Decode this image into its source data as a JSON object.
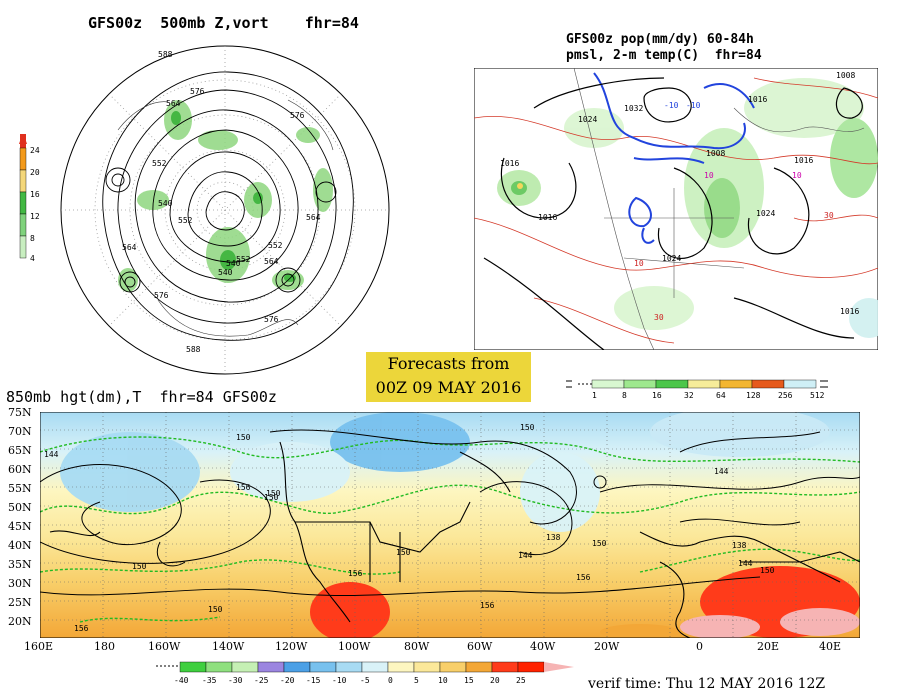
{
  "panels": {
    "polar": {
      "title": "GFS00z  500mb Z,vort    fhr=84",
      "colorbar_labels": [
        "24",
        "20",
        "16",
        "12",
        "8",
        "4"
      ],
      "colorbar_colors": [
        "#e0301e",
        "#f39a1b",
        "#f4d77a",
        "#42b843",
        "#7fd27c",
        "#c8eec0"
      ],
      "contour_labels": [
        "588",
        "576",
        "564",
        "552",
        "540",
        "552",
        "564",
        "576",
        "540",
        "552",
        "564",
        "576",
        "588",
        "564",
        "552",
        "540",
        "576"
      ]
    },
    "precip": {
      "title_line1": "GFS00z pop(mm/dy) 60-84h",
      "title_line2": "pmsl, 2-m temp(C)  fhr=84",
      "colorbar_labels": [
        "1",
        "8",
        "16",
        "32",
        "64",
        "128",
        "256",
        "512"
      ],
      "colorbar_colors": [
        "#d8f7d0",
        "#9ee88e",
        "#4cc64a",
        "#f6ec9a",
        "#f3b632",
        "#e65a1c",
        "#ff2a00",
        "#cfeff6"
      ],
      "isobar_labels": [
        "1008",
        "1016",
        "1024",
        "1032",
        "1016",
        "1024",
        "1016",
        "1016",
        "1008",
        "1024",
        "1016"
      ],
      "temp_labels": [
        "-10",
        "-10",
        "10",
        "10",
        "30",
        "30",
        "10"
      ]
    },
    "h850": {
      "title": "850mb hgt(dm),T  fhr=84 GFS00z",
      "lat_labels": [
        "75N",
        "70N",
        "65N",
        "60N",
        "55N",
        "50N",
        "45N",
        "40N",
        "35N",
        "30N",
        "25N",
        "20N"
      ],
      "lon_labels": [
        "160E",
        "180",
        "160W",
        "140W",
        "120W",
        "100W",
        "80W",
        "60W",
        "40W",
        "20W",
        "0",
        "20E",
        "40E"
      ],
      "contour_labels": [
        "144",
        "150",
        "156",
        "150",
        "150",
        "150",
        "156",
        "144",
        "138",
        "150",
        "156",
        "150",
        "156",
        "150",
        "144",
        "138",
        "144",
        "150",
        "156",
        "150"
      ],
      "colorbar_labels": [
        "-40",
        "-35",
        "-30",
        "-25",
        "-20",
        "-15",
        "-10",
        "-5",
        "0",
        "5",
        "10",
        "15",
        "20",
        "25"
      ],
      "colorbar_colors": [
        "#3fcf3f",
        "#8fe07f",
        "#c5f0b4",
        "#9b85e0",
        "#4ca0e6",
        "#78c1ee",
        "#a8dbf3",
        "#d9f2f8",
        "#fdf6c0",
        "#fbe89a",
        "#f8cf6a",
        "#f3a737",
        "#ff3b1a",
        "#ff2200"
      ]
    }
  },
  "forecast_box": {
    "line1": "Forecasts from",
    "line2": "00Z 09 MAY 2016"
  },
  "verif_time": "verif time: Thu 12 MAY 2016 12Z",
  "icons": {
    "map_polar": "polar-stereographic-map",
    "map_precip": "regional-map",
    "map_850": "cylindrical-map"
  }
}
